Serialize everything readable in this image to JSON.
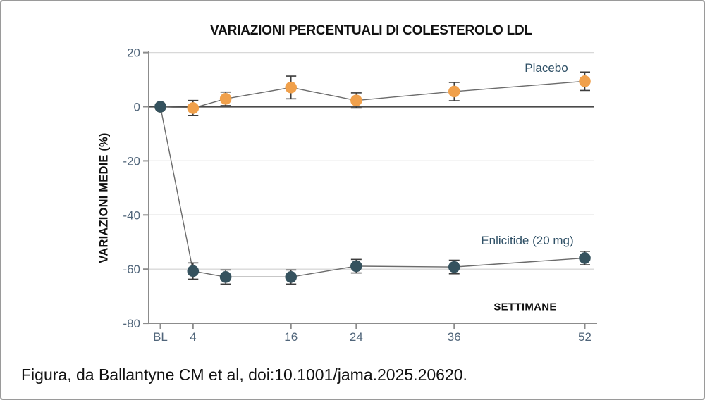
{
  "figure": {
    "title": "VARIAZIONI PERCENTUALI DI COLESTEROLO LDL",
    "ylabel": "VARIAZIONI MEDIE (%)",
    "xlabel": "SETTIMANE",
    "caption": "Figura, da Ballantyne CM et al, doi:10.1001/jama.2025.20620.",
    "series_labels": {
      "placebo": "Placebo",
      "enlicitide": "Enlicitide (20 mg)"
    }
  },
  "colors": {
    "placebo_marker": "#f0a04b",
    "enlicitide_marker": "#35525e",
    "baseline_marker": "#35525e",
    "series_line": "#6b6b6b",
    "error_bar": "#3d3d3d",
    "gridline": "#d8d8d8",
    "zero_line": "#4a4a4a",
    "axis": "#8c8c8c",
    "tick_label": "#50657a",
    "series_label_text": "#2f5066",
    "frame_border": "#9a9a9a"
  },
  "chart_data": {
    "type": "line",
    "title": "VARIAZIONI PERCENTUALI DI COLESTEROLO LDL",
    "xlabel": "SETTIMANE",
    "ylabel": "VARIAZIONI MEDIE (%)",
    "x_unit": "weeks",
    "x": [
      0,
      4,
      8,
      16,
      24,
      36,
      52
    ],
    "x_ticks": [
      {
        "week": 0,
        "label": "BL"
      },
      {
        "week": 4,
        "label": "4"
      },
      {
        "week": 16,
        "label": "16"
      },
      {
        "week": 24,
        "label": "24"
      },
      {
        "week": 36,
        "label": "36"
      },
      {
        "week": 52,
        "label": "52"
      }
    ],
    "ylim": [
      -80,
      20
    ],
    "yticks": [
      20,
      0,
      -20,
      -40,
      -60,
      -80
    ],
    "grid": "light horizontal gridlines at 20-unit steps, dark line at 0",
    "legend": "inline labels beside last points",
    "series": [
      {
        "name": "Placebo",
        "color": "#f0a04b",
        "values": [
          0,
          -0.5,
          2.9,
          7.1,
          2.3,
          5.6,
          9.4
        ],
        "errors": [
          0,
          2.8,
          2.5,
          4.2,
          2.8,
          3.4,
          3.4
        ]
      },
      {
        "name": "Enlicitide (20 mg)",
        "color": "#35525e",
        "values": [
          0,
          -60.7,
          -62.9,
          -62.9,
          -58.9,
          -59.2,
          -55.9
        ],
        "errors": [
          0,
          3.0,
          2.6,
          2.6,
          2.5,
          2.5,
          2.5
        ]
      }
    ],
    "baseline_note": "single shared baseline point at BL = 0, drawn in enlicitide dark color"
  }
}
